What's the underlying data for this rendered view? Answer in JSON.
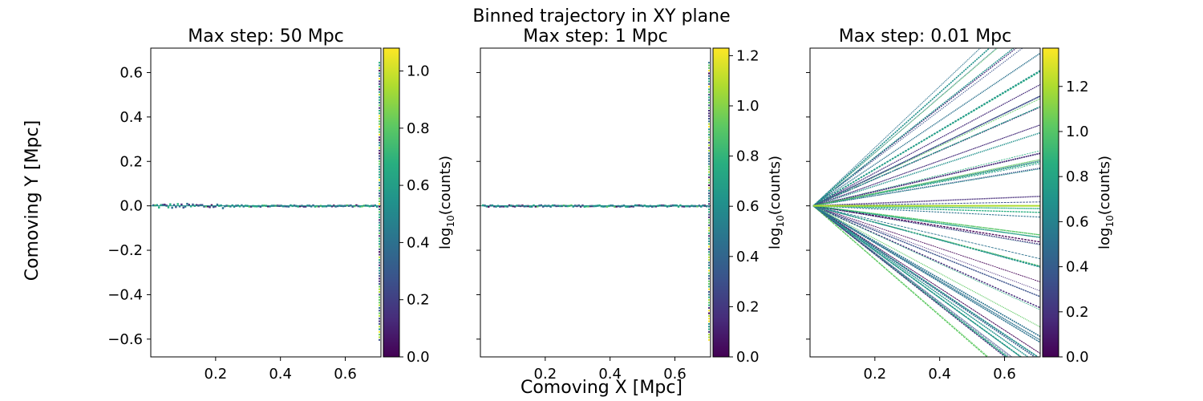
{
  "figure": {
    "suptitle": "Binned trajectory in XY plane",
    "xlabel": "Comoving X [Mpc]",
    "ylabel": "Comoving Y [Mpc]"
  },
  "chart_data": [
    {
      "type": "heatmap",
      "title": "Max step: 50 Mpc",
      "xlabel": "Comoving X [Mpc]",
      "ylabel": "Comoving Y [Mpc]",
      "xlim": [
        0.0,
        0.71
      ],
      "ylim": [
        -0.68,
        0.71
      ],
      "xticks": [
        0.2,
        0.4,
        0.6
      ],
      "xtick_labels": [
        "0.2",
        "0.4",
        "0.6"
      ],
      "yticks": [
        0.6,
        0.4,
        0.2,
        0.0,
        -0.2,
        -0.4,
        -0.6
      ],
      "ytick_labels": [
        "0.6",
        "0.4",
        "0.2",
        "0.0",
        "−0.2",
        "−0.4",
        "−0.6"
      ],
      "show_ytick_labels": true,
      "colorbar": {
        "label_prefix": "log",
        "label_sub": "10",
        "label_suffix": "(counts)",
        "range": [
          0.0,
          1.08
        ],
        "ticks": [
          0.0,
          0.2,
          0.4,
          0.6,
          0.8,
          1.0
        ],
        "tick_labels": [
          "0.0",
          "0.2",
          "0.4",
          "0.6",
          "0.8",
          "1.0"
        ]
      },
      "pattern": "horizontal_line",
      "colormap": "viridis"
    },
    {
      "type": "heatmap",
      "title": "Max step: 1 Mpc",
      "xlabel": "Comoving X [Mpc]",
      "ylabel": "",
      "xlim": [
        0.0,
        0.71
      ],
      "ylim": [
        -0.68,
        0.71
      ],
      "xticks": [
        0.2,
        0.4,
        0.6
      ],
      "xtick_labels": [
        "0.2",
        "0.4",
        "0.6"
      ],
      "yticks": [
        0.6,
        0.4,
        0.2,
        0.0,
        -0.2,
        -0.4,
        -0.6
      ],
      "ytick_labels": [],
      "show_ytick_labels": false,
      "colorbar": {
        "label_prefix": "log",
        "label_sub": "10",
        "label_suffix": "(counts)",
        "range": [
          0.0,
          1.23
        ],
        "ticks": [
          0.0,
          0.2,
          0.4,
          0.6,
          0.8,
          1.0,
          1.2
        ],
        "tick_labels": [
          "0.0",
          "0.2",
          "0.4",
          "0.6",
          "0.8",
          "1.0",
          "1.2"
        ]
      },
      "pattern": "horizontal_line",
      "colormap": "viridis"
    },
    {
      "type": "heatmap",
      "title": "Max step: 0.01 Mpc",
      "xlabel": "Comoving X [Mpc]",
      "ylabel": "",
      "xlim": [
        0.0,
        0.71
      ],
      "ylim": [
        -0.68,
        0.71
      ],
      "xticks": [
        0.2,
        0.4,
        0.6
      ],
      "xtick_labels": [
        "0.2",
        "0.4",
        "0.6"
      ],
      "yticks": [
        0.6,
        0.4,
        0.2,
        0.0,
        -0.2,
        -0.4,
        -0.6
      ],
      "ytick_labels": [],
      "show_ytick_labels": false,
      "colorbar": {
        "label_prefix": "log",
        "label_sub": "10",
        "label_suffix": "(counts)",
        "range": [
          0.0,
          1.37
        ],
        "ticks": [
          0.0,
          0.2,
          0.4,
          0.6,
          0.8,
          1.0,
          1.2
        ],
        "tick_labels": [
          "0.0",
          "0.2",
          "0.4",
          "0.6",
          "0.8",
          "1.0",
          "1.2"
        ]
      },
      "pattern": "fan",
      "colormap": "viridis"
    }
  ]
}
